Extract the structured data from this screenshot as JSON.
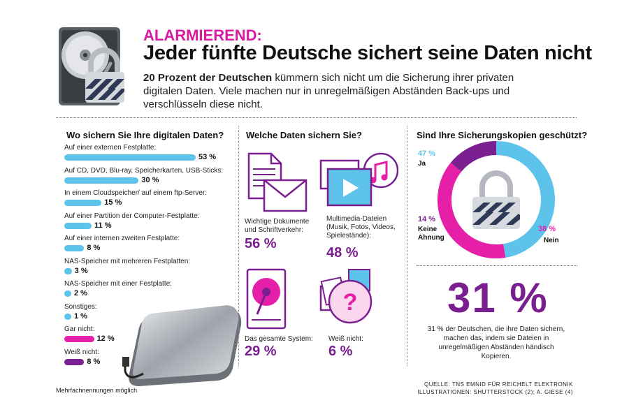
{
  "header": {
    "kicker": "ALARMIEREND:",
    "headline": "Jeder fünfte Deutsche sichert seine Daten nicht",
    "intro_bold": "20 Prozent der Deutschen",
    "intro_rest": " kümmern sich nicht um die Sicherung ihrer privaten digitalen Daten. Viele machen nur in unregelmäßigen Abständen Back-ups und verschlüsseln diese nicht."
  },
  "colors": {
    "magenta": "#e51fa8",
    "blue": "#5ec3ea",
    "purple": "#7a1f8f"
  },
  "chart_data": [
    {
      "type": "bar",
      "title": "Wo sichern Sie Ihre digitalen Daten?",
      "unit": "%",
      "categories": [
        "Auf einer externen Festplatte:",
        "Auf CD, DVD, Blu-ray, Speicherkarten, USB-Sticks:",
        "In einem Cloudspeicher/ auf einem ftp-Server:",
        "Auf einer Partition der Computer-Festplatte:",
        "Auf einer internen zweiten Festplatte:",
        "NAS-Speicher mit mehreren Festplatten:",
        "NAS-Speicher mit einer Festplatte:",
        "Sonstiges:",
        "Gar nicht:",
        "Weiß nicht:"
      ],
      "values": [
        53,
        30,
        15,
        11,
        8,
        3,
        2,
        1,
        12,
        8
      ],
      "value_labels": [
        "53 %",
        "30 %",
        "15 %",
        "11 %",
        "8 %",
        "3 %",
        "2 %",
        "1 %",
        "12 %",
        "8 %"
      ],
      "bar_colors": [
        "blue",
        "blue",
        "blue",
        "blue",
        "blue",
        "blue",
        "blue",
        "blue",
        "magenta",
        "purple"
      ],
      "footnote": "Mehrfachnennungen möglich",
      "xlim": [
        0,
        53
      ]
    },
    {
      "type": "pictogram",
      "title": "Welche Daten sichern Sie?",
      "items": [
        {
          "label": "Wichtige Dokumente und Schriftverkehr:",
          "value": 56,
          "value_label": "56 %",
          "icon": "document-envelope-icon"
        },
        {
          "label": "Multimedia-Dateien (Musik, Fotos, Videos, Spielestände):",
          "value": 48,
          "value_label": "48 %",
          "icon": "multimedia-icon"
        },
        {
          "label": "Das gesamte System:",
          "value": 29,
          "value_label": "29 %",
          "icon": "hard-drive-icon"
        },
        {
          "label": "Weiß nicht:",
          "value": 6,
          "value_label": "6 %",
          "icon": "question-icon"
        }
      ]
    },
    {
      "type": "pie",
      "title": "Sind Ihre Sicherungskopien geschützt?",
      "slices": [
        {
          "label": "Ja",
          "value": 47,
          "value_label": "47 %",
          "color": "blue"
        },
        {
          "label": "Nein",
          "value": 38,
          "value_label": "38 %",
          "color": "magenta"
        },
        {
          "label": "Keine Ahnung",
          "value": 14,
          "value_label": "14 %",
          "color": "purple"
        }
      ]
    }
  ],
  "highlight": {
    "value": "31 %",
    "note": "31 % der Deutschen, die ihre Daten sichern, machen das, indem sie Dateien in unregelmäßigen Abständen händisch Kopieren."
  },
  "source": {
    "line1": "QUELLE: TNS EMNID FÜR REICHELT ELEKTRONIK",
    "line2": "ILLUSTRATIONEN: SHUTTERSTOCK (2); A. GIESE (4)"
  }
}
